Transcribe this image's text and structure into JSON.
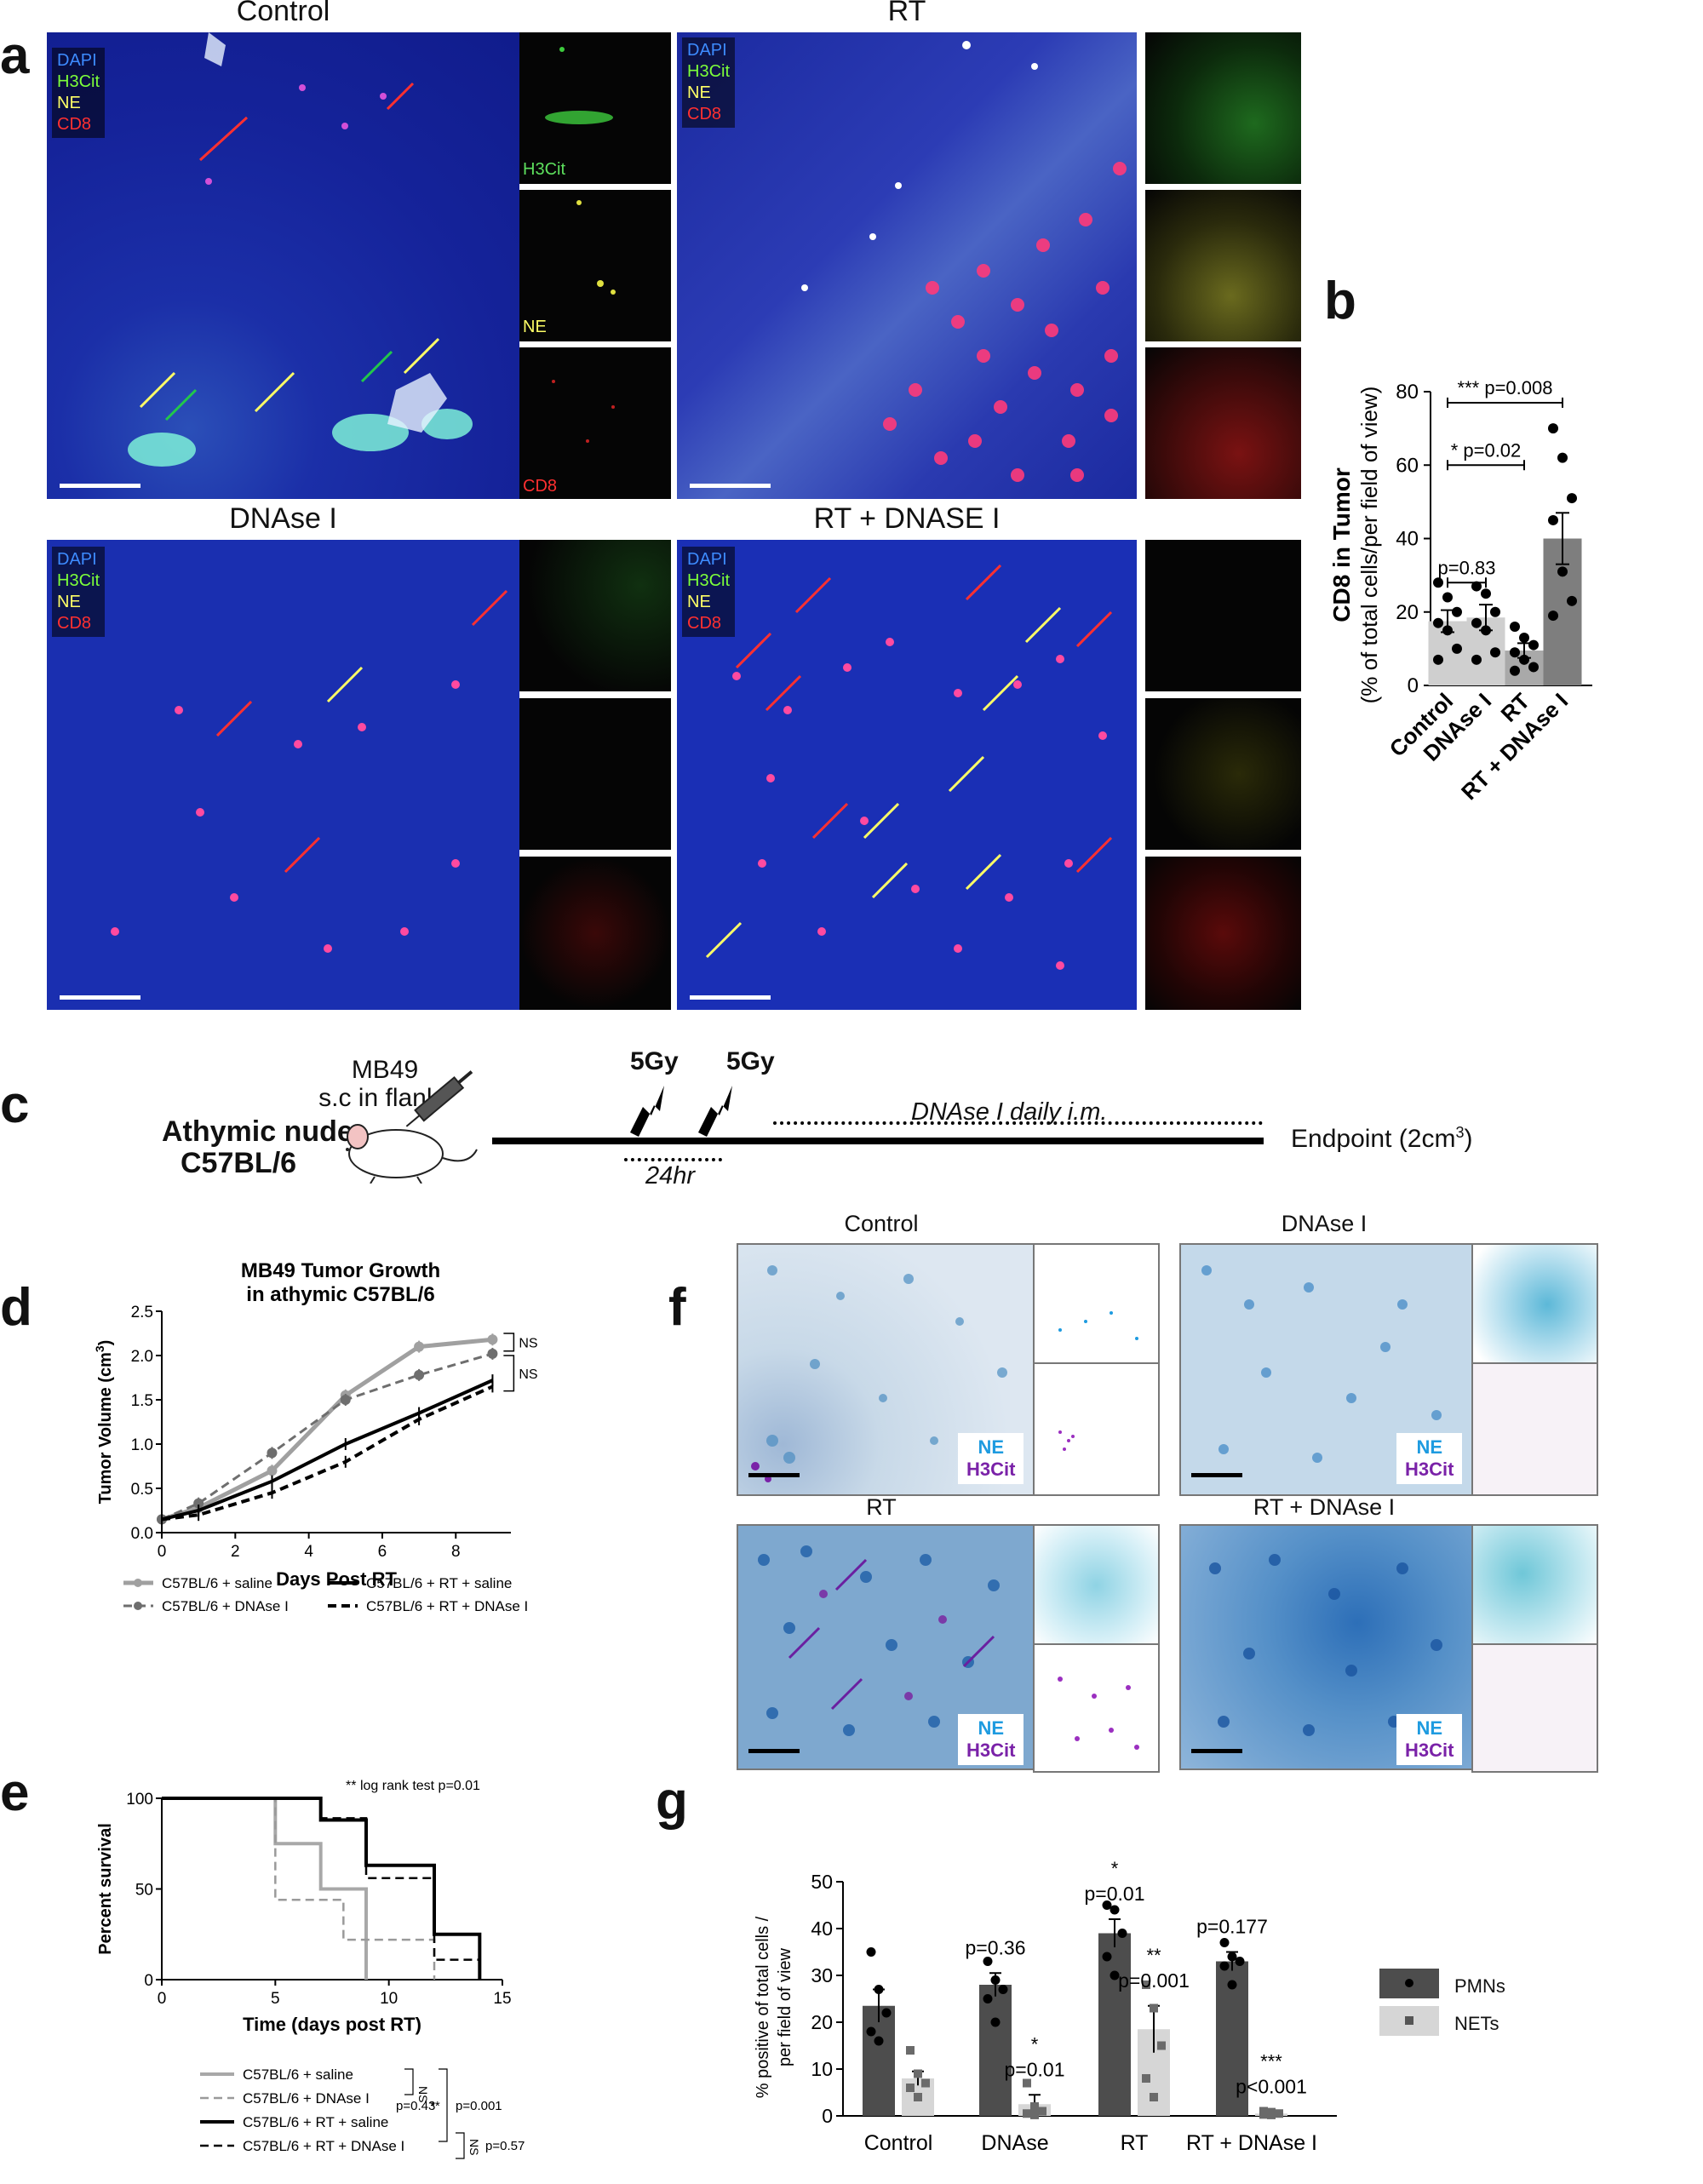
{
  "panel_letters": {
    "a": "a",
    "b": "b",
    "c": "c",
    "d": "d",
    "e": "e",
    "f": "f",
    "g": "g"
  },
  "panel_a": {
    "titles": [
      "Control",
      "RT",
      "DNAse I",
      "RT + DNASE I"
    ],
    "legend": [
      "DAPI",
      "H3Cit",
      "NE",
      "CD8"
    ],
    "channel_labels": [
      "H3Cit",
      "NE",
      "CD8"
    ],
    "colors": {
      "dapi": "#3d8bff",
      "h3cit": "#7dff3a",
      "ne": "#ffff66",
      "cd8": "#ff3030"
    }
  },
  "panel_c": {
    "cell_line": "MB49",
    "injection": "s.c in flank",
    "mouse_line1": "Athymic nude",
    "mouse_line2": "C57BL/6",
    "dose1": "5Gy",
    "dose2": "5Gy",
    "treatment": "DNAse I daily i.m.",
    "interval": "24hr",
    "endpoint": "Endpoint (2cm",
    "endpoint_sup": "3",
    "endpoint_close": ")"
  },
  "panel_f": {
    "titles": [
      "Control",
      "DNAse I",
      "RT",
      "RT + DNAse I"
    ],
    "legend_ne": "NE",
    "legend_h3cit": "H3Cit",
    "colors": {
      "ne": "#1e9be0",
      "h3cit": "#7a22a8"
    }
  },
  "chart_data": [
    {
      "id": "b",
      "type": "bar",
      "categories": [
        "Control",
        "DNAse I",
        "RT",
        "RT + DNAse I"
      ],
      "values": [
        17.5,
        18.5,
        9.5,
        40
      ],
      "sem": [
        3,
        3.5,
        2,
        7
      ],
      "points": [
        [
          28,
          24,
          20,
          17,
          15,
          10,
          7
        ],
        [
          27,
          25,
          20,
          17,
          15,
          9,
          7
        ],
        [
          16,
          13,
          11,
          9,
          7,
          5,
          4
        ],
        [
          70,
          62,
          51,
          45,
          31,
          23,
          19
        ]
      ],
      "bar_colors": [
        "#cfcfcf",
        "#cfcfcf",
        "#a9a9a9",
        "#7e7e7e"
      ],
      "ylabel": "CD8 in Tumor",
      "ylabel2": "(% of total cells/per field of view)",
      "ylim": [
        0,
        80
      ],
      "yticks": [
        0,
        20,
        40,
        60,
        80
      ],
      "comparisons": [
        "p=0.83",
        "* p=0.02",
        "*** p=0.008"
      ]
    },
    {
      "id": "d",
      "type": "line",
      "title": "MB49 Tumor Growth",
      "subtitle": "in athymic C57BL/6",
      "xlabel": "Days Post RT",
      "ylabel": "Tumor Volume (cm",
      "ylabel_sup": "3",
      "ylabel_close": ")",
      "xlim": [
        0,
        9.5
      ],
      "ylim": [
        0,
        2.5
      ],
      "xticks": [
        0,
        2,
        4,
        6,
        8
      ],
      "yticks": [
        0.0,
        0.5,
        1.0,
        1.5,
        2.0,
        2.5
      ],
      "x": [
        0,
        1,
        3,
        5,
        7,
        9
      ],
      "series": [
        {
          "name": "C57BL/6 + saline",
          "values": [
            0.15,
            0.28,
            0.7,
            1.55,
            2.1,
            2.18
          ]
        },
        {
          "name": "C57BL/6 + DNAse I",
          "values": [
            0.15,
            0.33,
            0.9,
            1.5,
            1.78,
            2.02
          ]
        },
        {
          "name": "C57BL/6 + RT + saline",
          "values": [
            0.15,
            0.25,
            0.58,
            1.0,
            1.35,
            1.72
          ]
        },
        {
          "name": "C57BL/6 + RT + DNAse I",
          "values": [
            0.15,
            0.2,
            0.45,
            0.8,
            1.28,
            1.65
          ]
        }
      ],
      "annotations": [
        "NS",
        "NS"
      ]
    },
    {
      "id": "e",
      "type": "line",
      "xlabel": "Time (days post RT)",
      "ylabel": "Percent survival",
      "xlim": [
        0,
        15
      ],
      "ylim": [
        0,
        100
      ],
      "xticks": [
        0,
        5,
        10,
        15
      ],
      "yticks": [
        0,
        50,
        100
      ],
      "series": [
        {
          "name": "C57BL/6 + saline",
          "steps": [
            [
              0,
              100
            ],
            [
              5,
              100
            ],
            [
              5,
              75
            ],
            [
              7,
              75
            ],
            [
              7,
              50
            ],
            [
              9,
              50
            ],
            [
              9,
              0
            ]
          ]
        },
        {
          "name": "C57BL/6 + DNAse I",
          "steps": [
            [
              0,
              100
            ],
            [
              5,
              100
            ],
            [
              5,
              44
            ],
            [
              8,
              44
            ],
            [
              8,
              22
            ],
            [
              12,
              22
            ],
            [
              12,
              0
            ]
          ]
        },
        {
          "name": "C57BL/6 + RT + saline",
          "steps": [
            [
              0,
              100
            ],
            [
              7,
              100
            ],
            [
              7,
              88
            ],
            [
              9,
              88
            ],
            [
              9,
              63
            ],
            [
              12,
              63
            ],
            [
              12,
              25
            ],
            [
              14,
              25
            ],
            [
              14,
              0
            ]
          ]
        },
        {
          "name": "C57BL/6 + RT + DNAse I",
          "steps": [
            [
              0,
              100
            ],
            [
              7,
              100
            ],
            [
              7,
              89
            ],
            [
              9,
              89
            ],
            [
              9,
              56
            ],
            [
              12,
              56
            ],
            [
              12,
              11
            ],
            [
              14,
              11
            ],
            [
              14,
              0
            ]
          ]
        }
      ],
      "annotation": "** log rank test p=0.01",
      "stats": [
        "NS",
        "p=0.43",
        "**",
        "p=0.001",
        "NS",
        "p=0.57"
      ]
    },
    {
      "id": "g",
      "type": "bar",
      "categories": [
        "Control",
        "DNAse",
        "RT",
        "RT + DNAse I"
      ],
      "series": [
        {
          "name": "PMNs",
          "values": [
            23.5,
            28,
            39,
            33
          ],
          "sem": [
            3.5,
            2.5,
            3,
            2
          ],
          "color": "#4d4d4d"
        },
        {
          "name": "NETs",
          "values": [
            8,
            2.5,
            18.5,
            0.5
          ],
          "sem": [
            1.5,
            2,
            5,
            0.3
          ],
          "color": "#d6d6d6"
        }
      ],
      "points": {
        "PMNs": [
          [
            35,
            27,
            22,
            18,
            16
          ],
          [
            33,
            29,
            27,
            25,
            20
          ],
          [
            45,
            44,
            39,
            34,
            30
          ],
          [
            37,
            34,
            33,
            32,
            28
          ]
        ],
        "NETs": [
          [
            14,
            9,
            7,
            6,
            4
          ],
          [
            7,
            2,
            1,
            0.5,
            0.2
          ],
          [
            28,
            23,
            15,
            8,
            4
          ],
          [
            1,
            0.8,
            0.5,
            0.3,
            0.2
          ]
        ]
      },
      "ylabel": "% positive of total cells /",
      "ylabel2": "per field of view",
      "ylim": [
        0,
        50
      ],
      "yticks": [
        0,
        10,
        20,
        30,
        40,
        50
      ],
      "pmn_labels": [
        "",
        "p=0.36",
        "p=0.01",
        "p=0.177"
      ],
      "pmn_stars": [
        "",
        "",
        "*",
        ""
      ],
      "net_labels": [
        "",
        "p=0.01",
        "p=0.001",
        "p<0.001"
      ],
      "net_stars": [
        "",
        "*",
        "**",
        "***"
      ]
    }
  ]
}
